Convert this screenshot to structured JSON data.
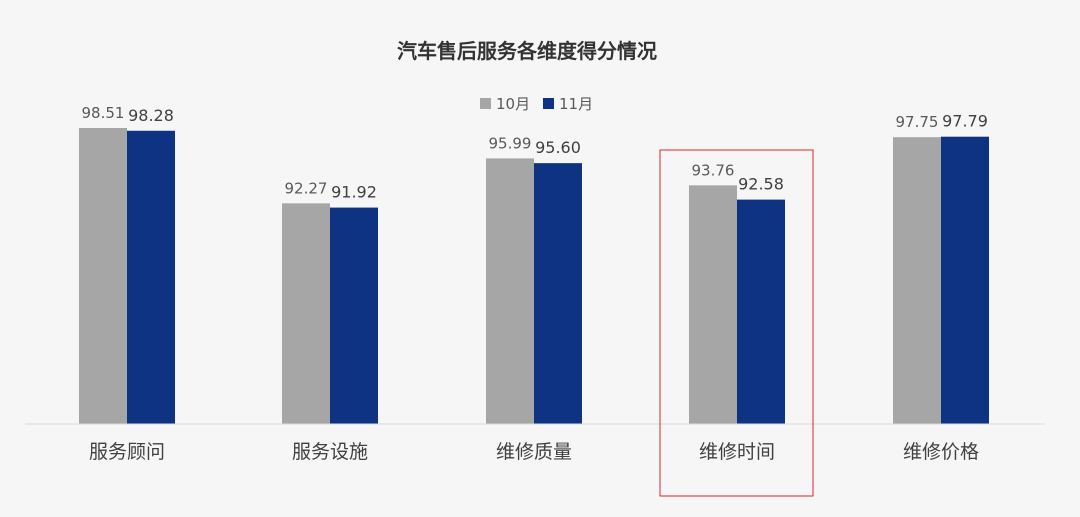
{
  "chart_data": {
    "type": "bar",
    "title": "汽车售后服务各维度得分情况",
    "categories": [
      "服务顾问",
      "服务设施",
      "维修质量",
      "维修时间",
      "维修价格"
    ],
    "series": [
      {
        "name": "10月",
        "color": "#a6a6a6",
        "values": [
          98.51,
          92.27,
          95.99,
          93.76,
          97.75
        ]
      },
      {
        "name": "11月",
        "color": "#0d3382",
        "values": [
          98.28,
          91.92,
          95.6,
          92.58,
          97.79
        ]
      }
    ],
    "ylim": [
      74,
      100
    ],
    "grid": false,
    "legend_position": "top-center",
    "highlight_category": "维修时间",
    "highlight_color": "#d9282f",
    "axis_color": "#d9d9d9"
  }
}
